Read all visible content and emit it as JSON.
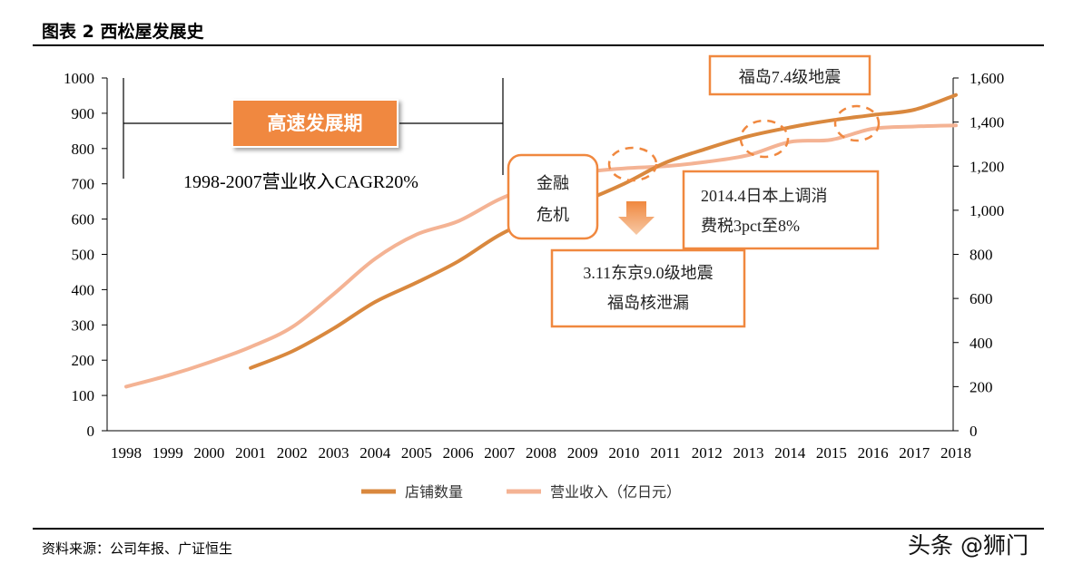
{
  "figure": {
    "title": "图表 2 西松屋发展史",
    "source": "资料来源：公司年报、广证恒生",
    "watermark": "头条 @狮门"
  },
  "chart_data": {
    "type": "line",
    "categories": [
      "1998",
      "1999",
      "2000",
      "2001",
      "2002",
      "2003",
      "2004",
      "2005",
      "2006",
      "2007",
      "2008",
      "2009",
      "2010",
      "2011",
      "2012",
      "2013",
      "2014",
      "2015",
      "2016",
      "2017",
      "2018"
    ],
    "y_left": {
      "range": [
        0,
        1000
      ],
      "ticks": [
        0,
        100,
        200,
        300,
        400,
        500,
        600,
        700,
        800,
        900,
        1000
      ]
    },
    "y_right": {
      "range": [
        0,
        1600
      ],
      "ticks": [
        0,
        200,
        400,
        600,
        800,
        1000,
        1200,
        1400,
        1600
      ],
      "tick_labels": [
        "0",
        "200",
        "400",
        "600",
        "800",
        "1,000",
        "1,200",
        "1,400",
        "1,600"
      ]
    },
    "series": [
      {
        "name": "店铺数量",
        "axis": "left",
        "color": "#D9883E",
        "values": [
          null,
          null,
          null,
          178,
          225,
          290,
          365,
          420,
          480,
          555,
          610,
          650,
          700,
          760,
          800,
          835,
          860,
          880,
          895,
          910,
          952
        ]
      },
      {
        "name": "营业收入（亿日元）",
        "axis": "right",
        "color": "#F4B394",
        "values": [
          200,
          250,
          310,
          380,
          470,
          620,
          780,
          890,
          950,
          1050,
          1120,
          1170,
          1190,
          1200,
          1220,
          1250,
          1310,
          1320,
          1370,
          1380,
          1385
        ]
      }
    ],
    "annotations": {
      "period_label": "高速发展期",
      "cagr": "1998-2007营业收入CAGR20%",
      "crisis": [
        "金融",
        "危机"
      ],
      "quake_2011": [
        "3.11东京9.0级地震",
        "福岛核泄漏"
      ],
      "tax_2014": [
        "2014.4日本上调消",
        "费税3pct至8%"
      ],
      "quake_2016": "福岛7.4级地震"
    },
    "grid": false,
    "legend_position": "bottom"
  },
  "colors": {
    "accent": "#F0883F",
    "store_line": "#D9883E",
    "revenue_line": "#F4B394"
  }
}
